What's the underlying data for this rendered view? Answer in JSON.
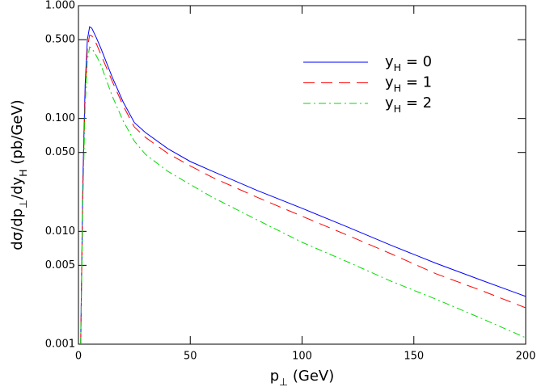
{
  "chart_data": {
    "type": "line",
    "x_label": "p⊥ (GeV)",
    "y_label": "dσ/dp⊥/dyH (pb/GeV)",
    "x": [
      1,
      2,
      3,
      4,
      5,
      6,
      8,
      10,
      15,
      20,
      25,
      30,
      40,
      50,
      60,
      80,
      100,
      120,
      140,
      160,
      180,
      200
    ],
    "series": [
      {
        "name": "yH = 0",
        "color": "#0000ff",
        "dash": "solid",
        "values": [
          0.001,
          0.03,
          0.2,
          0.5,
          0.65,
          0.63,
          0.52,
          0.42,
          0.235,
          0.14,
          0.092,
          0.075,
          0.054,
          0.0416,
          0.034,
          0.023,
          0.016,
          0.011,
          0.0075,
          0.0052,
          0.0037,
          0.00265
        ]
      },
      {
        "name": "yH = 1",
        "color": "#ff0000",
        "dash": "dashed",
        "values": [
          0.001,
          0.025,
          0.17,
          0.42,
          0.55,
          0.54,
          0.46,
          0.37,
          0.216,
          0.13,
          0.084,
          0.068,
          0.049,
          0.038,
          0.03,
          0.02,
          0.0136,
          0.0093,
          0.0063,
          0.0042,
          0.003,
          0.0021
        ]
      },
      {
        "name": "yH = 2",
        "color": "#00dd00",
        "dash": "dashdot",
        "values": [
          0.001,
          0.02,
          0.13,
          0.33,
          0.43,
          0.42,
          0.36,
          0.3,
          0.16,
          0.095,
          0.063,
          0.048,
          0.034,
          0.026,
          0.02,
          0.0126,
          0.008,
          0.0054,
          0.0036,
          0.0025,
          0.0017,
          0.00114
        ]
      }
    ],
    "xlim": [
      0,
      200
    ],
    "xticks": [
      0,
      50,
      100,
      150,
      200
    ],
    "ylim": [
      0.001,
      1
    ],
    "log_y": true,
    "yticks": [
      {
        "value": 0.001,
        "label": "0.001"
      },
      {
        "value": 0.005,
        "label": "0.005"
      },
      {
        "value": 0.01,
        "label": "0.010"
      },
      {
        "value": 0.05,
        "label": "0.050"
      },
      {
        "value": 0.1,
        "label": "0.100"
      },
      {
        "value": 0.5,
        "label": "0.500"
      },
      {
        "value": 1,
        "label": "1.000"
      }
    ],
    "legend": "upper right"
  }
}
